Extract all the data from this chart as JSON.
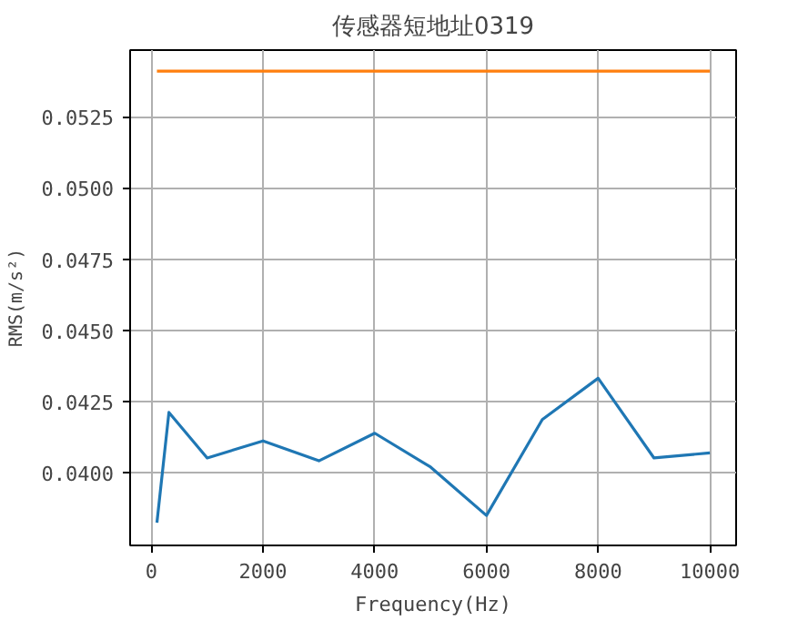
{
  "chart_data": {
    "type": "line",
    "title": "传感器短地址0319",
    "xlabel": "Frequency(Hz)",
    "ylabel": "RMS(m/s²)",
    "x": [
      100,
      315,
      1000,
      2000,
      3000,
      4000,
      5000,
      6000,
      7000,
      8000,
      9000,
      10000
    ],
    "series": [
      {
        "color": "#1f77b4",
        "values": [
          0.03825,
          0.04212,
          0.04052,
          0.04112,
          0.04042,
          0.04139,
          0.0402,
          0.0385,
          0.04187,
          0.04332,
          0.04052,
          0.0407
        ]
      },
      {
        "color": "#ff7f0e",
        "x": [
          100,
          10000
        ],
        "values": [
          0.0541,
          0.0541
        ]
      }
    ],
    "xlim": [
      -380,
      10470
    ],
    "ylim": [
      0.03745,
      0.05484
    ],
    "xticks": [
      0,
      2000,
      4000,
      6000,
      8000,
      10000
    ],
    "yticks": [
      {
        "value": 0.04,
        "label": "0.0400"
      },
      {
        "value": 0.0425,
        "label": "0.0425"
      },
      {
        "value": 0.045,
        "label": "0.0450"
      },
      {
        "value": 0.0475,
        "label": "0.0475"
      },
      {
        "value": 0.05,
        "label": "0.0500"
      },
      {
        "value": 0.0525,
        "label": "0.0525"
      }
    ],
    "grid": true,
    "line_style": "solid"
  }
}
